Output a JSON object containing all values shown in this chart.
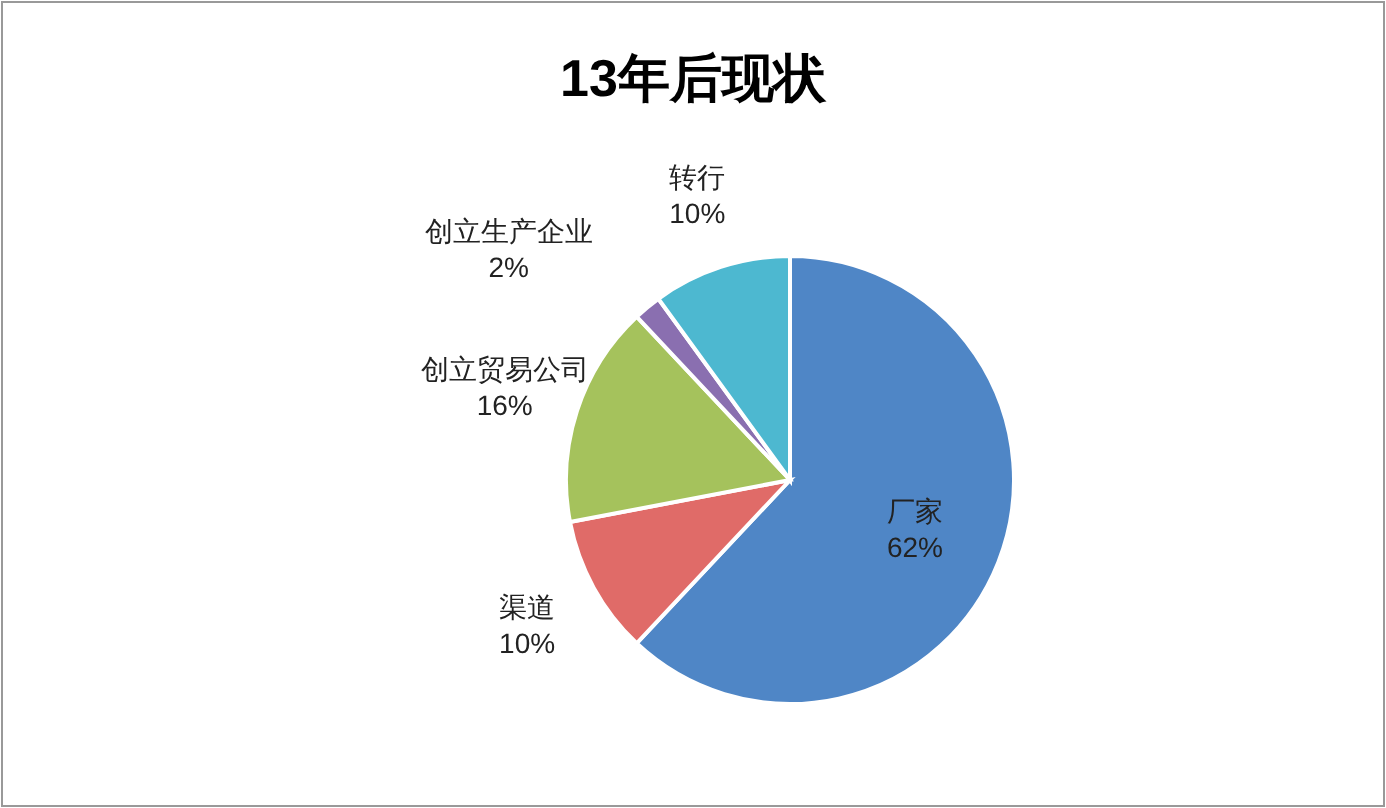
{
  "chart_data": {
    "type": "pie",
    "title": "13年后现状",
    "categories": [
      "厂家",
      "渠道",
      "创立贸易公司",
      "创立生产企业",
      "转行"
    ],
    "values": [
      62,
      10,
      16,
      2,
      10
    ],
    "colors": [
      "#4f86c6",
      "#e06b68",
      "#a5c25c",
      "#8a6fb0",
      "#4db8d0"
    ],
    "value_labels": [
      "62%",
      "10%",
      "16%",
      "2%",
      "10%"
    ]
  }
}
